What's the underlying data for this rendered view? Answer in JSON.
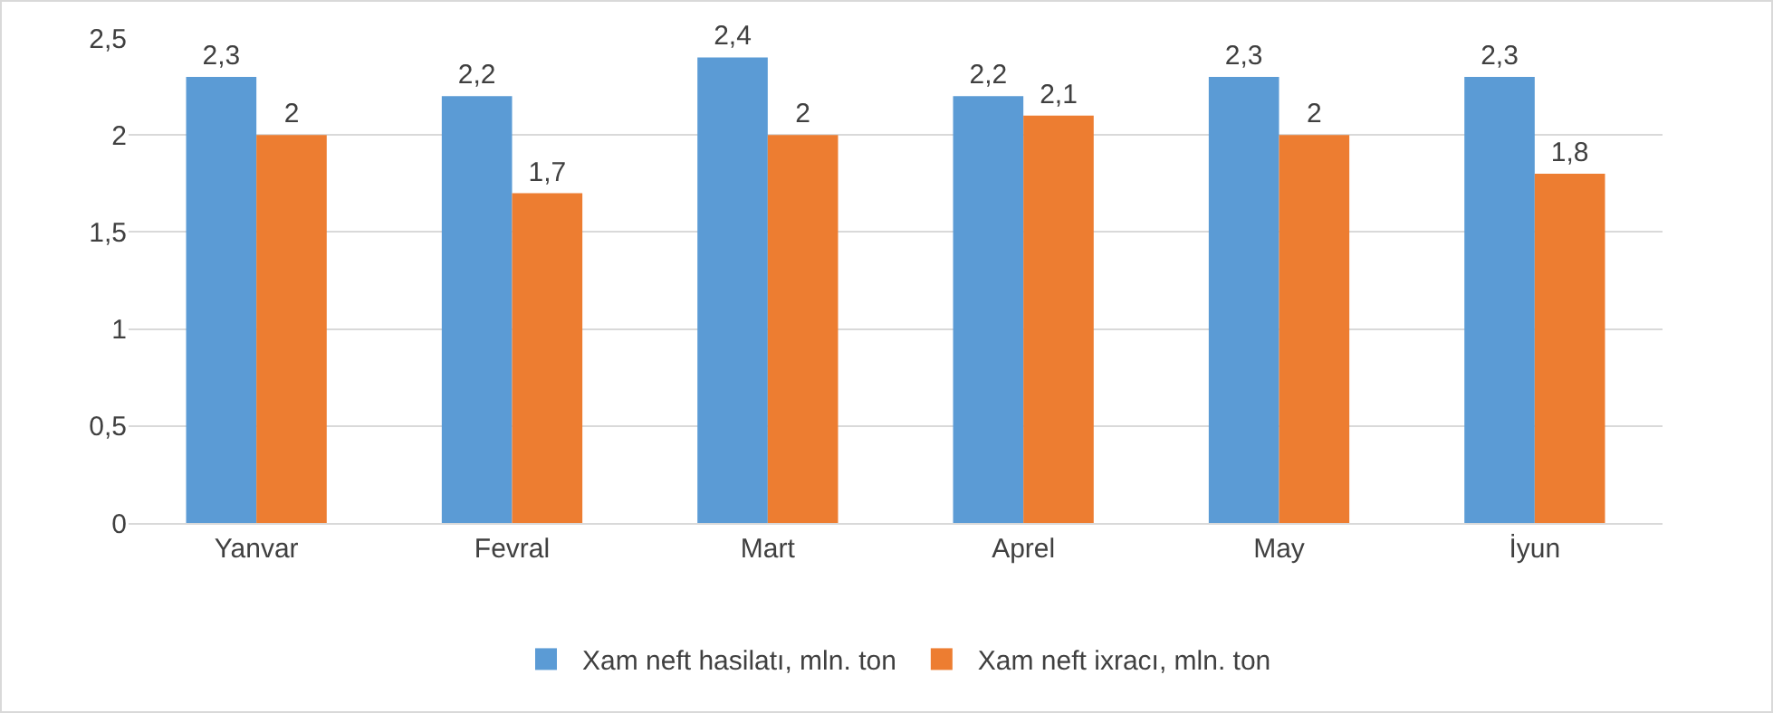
{
  "chart_data": {
    "type": "bar",
    "categories": [
      "Yanvar",
      "Fevral",
      "Mart",
      "Aprel",
      "May",
      "İyun"
    ],
    "series": [
      {
        "name": "Xam neft hasilatı, mln. ton",
        "color": "#5b9bd5",
        "values": [
          2.3,
          2.2,
          2.4,
          2.2,
          2.3,
          2.3
        ],
        "value_labels": [
          "2,3",
          "2,2",
          "2,4",
          "2,2",
          "2,3",
          "2,3"
        ]
      },
      {
        "name": "Xam neft ixracı, mln. ton",
        "color": "#ed7d31",
        "values": [
          2,
          1.7,
          2,
          2.1,
          2,
          1.8
        ],
        "value_labels": [
          "2",
          "1,7",
          "2",
          "2,1",
          "2",
          "1,8"
        ]
      }
    ],
    "ylim": [
      0,
      2.5
    ],
    "yticks": [
      0,
      {
        "value": 0.5,
        "label": "0,5"
      },
      1,
      {
        "value": 1.5,
        "label": "1,5"
      },
      2,
      {
        "value": 2.5,
        "label": "2,5"
      }
    ],
    "grid": "y",
    "legend": "bottom"
  }
}
